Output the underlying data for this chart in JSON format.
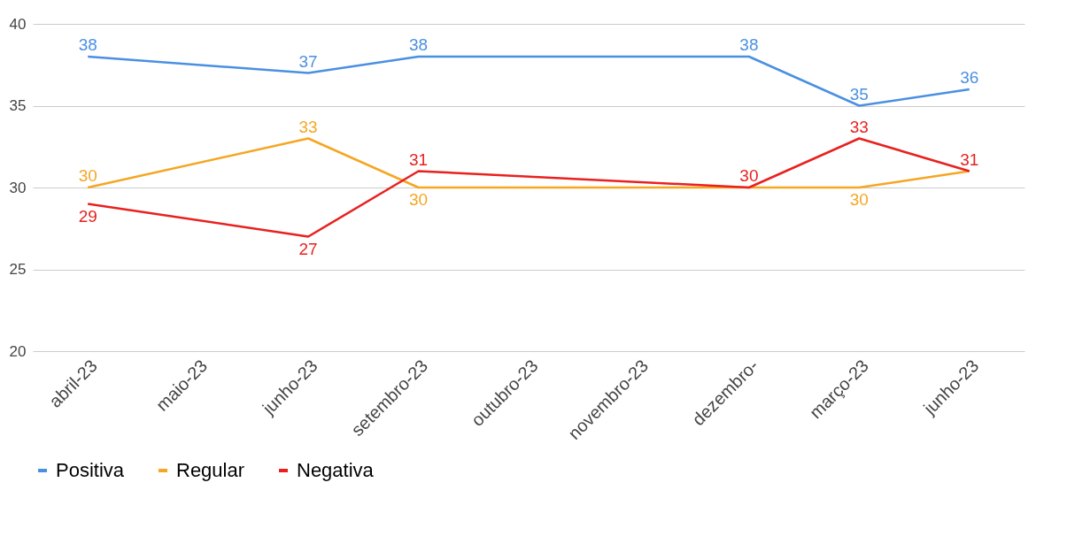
{
  "chart_data": {
    "type": "line",
    "categories": [
      "abril-23",
      "maio-23",
      "junho-23",
      "setembro-23",
      "outubro-23",
      "novembro-23",
      "dezembro-",
      "março-23",
      "junho-23"
    ],
    "series": [
      {
        "name": "Positiva",
        "color": "#4a90e2",
        "values": [
          38,
          null,
          37,
          38,
          null,
          null,
          38,
          35,
          36
        ],
        "value_labels": [
          "38",
          null,
          "37",
          "38",
          null,
          null,
          "38",
          "35",
          "36"
        ]
      },
      {
        "name": "Regular",
        "color": "#f5a623",
        "values": [
          30,
          null,
          33,
          30,
          null,
          null,
          30,
          30,
          31
        ],
        "value_labels": [
          "30",
          null,
          "33",
          "30",
          null,
          null,
          null,
          "30",
          null
        ]
      },
      {
        "name": "Negativa",
        "color": "#e8211f",
        "values": [
          29,
          null,
          27,
          31,
          null,
          null,
          30,
          33,
          31
        ],
        "value_labels": [
          "29",
          null,
          "27",
          "31",
          null,
          null,
          "30",
          "33",
          "31"
        ]
      }
    ],
    "ylim": [
      20,
      40
    ],
    "yticks": [
      20,
      25,
      30,
      35,
      40
    ],
    "grid": "y",
    "legend": "bottom",
    "marker": "none",
    "line_style": "solid"
  }
}
